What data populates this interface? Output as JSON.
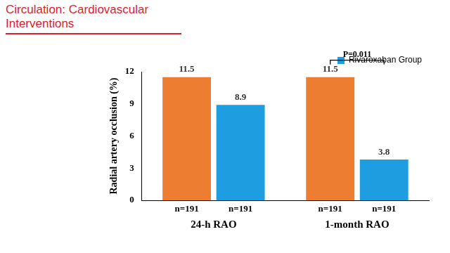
{
  "chart_data": {
    "type": "bar",
    "title": "Circulation: Cardiovascular Interventions",
    "y_label": "Radial artery occlusion (%)",
    "categories": [
      "24-h RAO",
      "1-month RAO"
    ],
    "series": [
      {
        "color": "#ed7d31",
        "values": [
          11.5,
          11.5
        ],
        "n_labels": [
          "n=191",
          "n=191"
        ]
      },
      {
        "name": "Rivaroxaban Group",
        "color": "#1e9ee0",
        "values": [
          8.9,
          3.8
        ],
        "n_labels": [
          "n=191",
          "n=191"
        ]
      }
    ],
    "ylim": [
      0,
      12
    ],
    "yticks": [
      0,
      3,
      6,
      9,
      12
    ],
    "grid": false,
    "data_labels": true,
    "legend": "top-right",
    "annotations": [
      {
        "category": "1-month RAO",
        "text": "P=0.011"
      }
    ]
  }
}
